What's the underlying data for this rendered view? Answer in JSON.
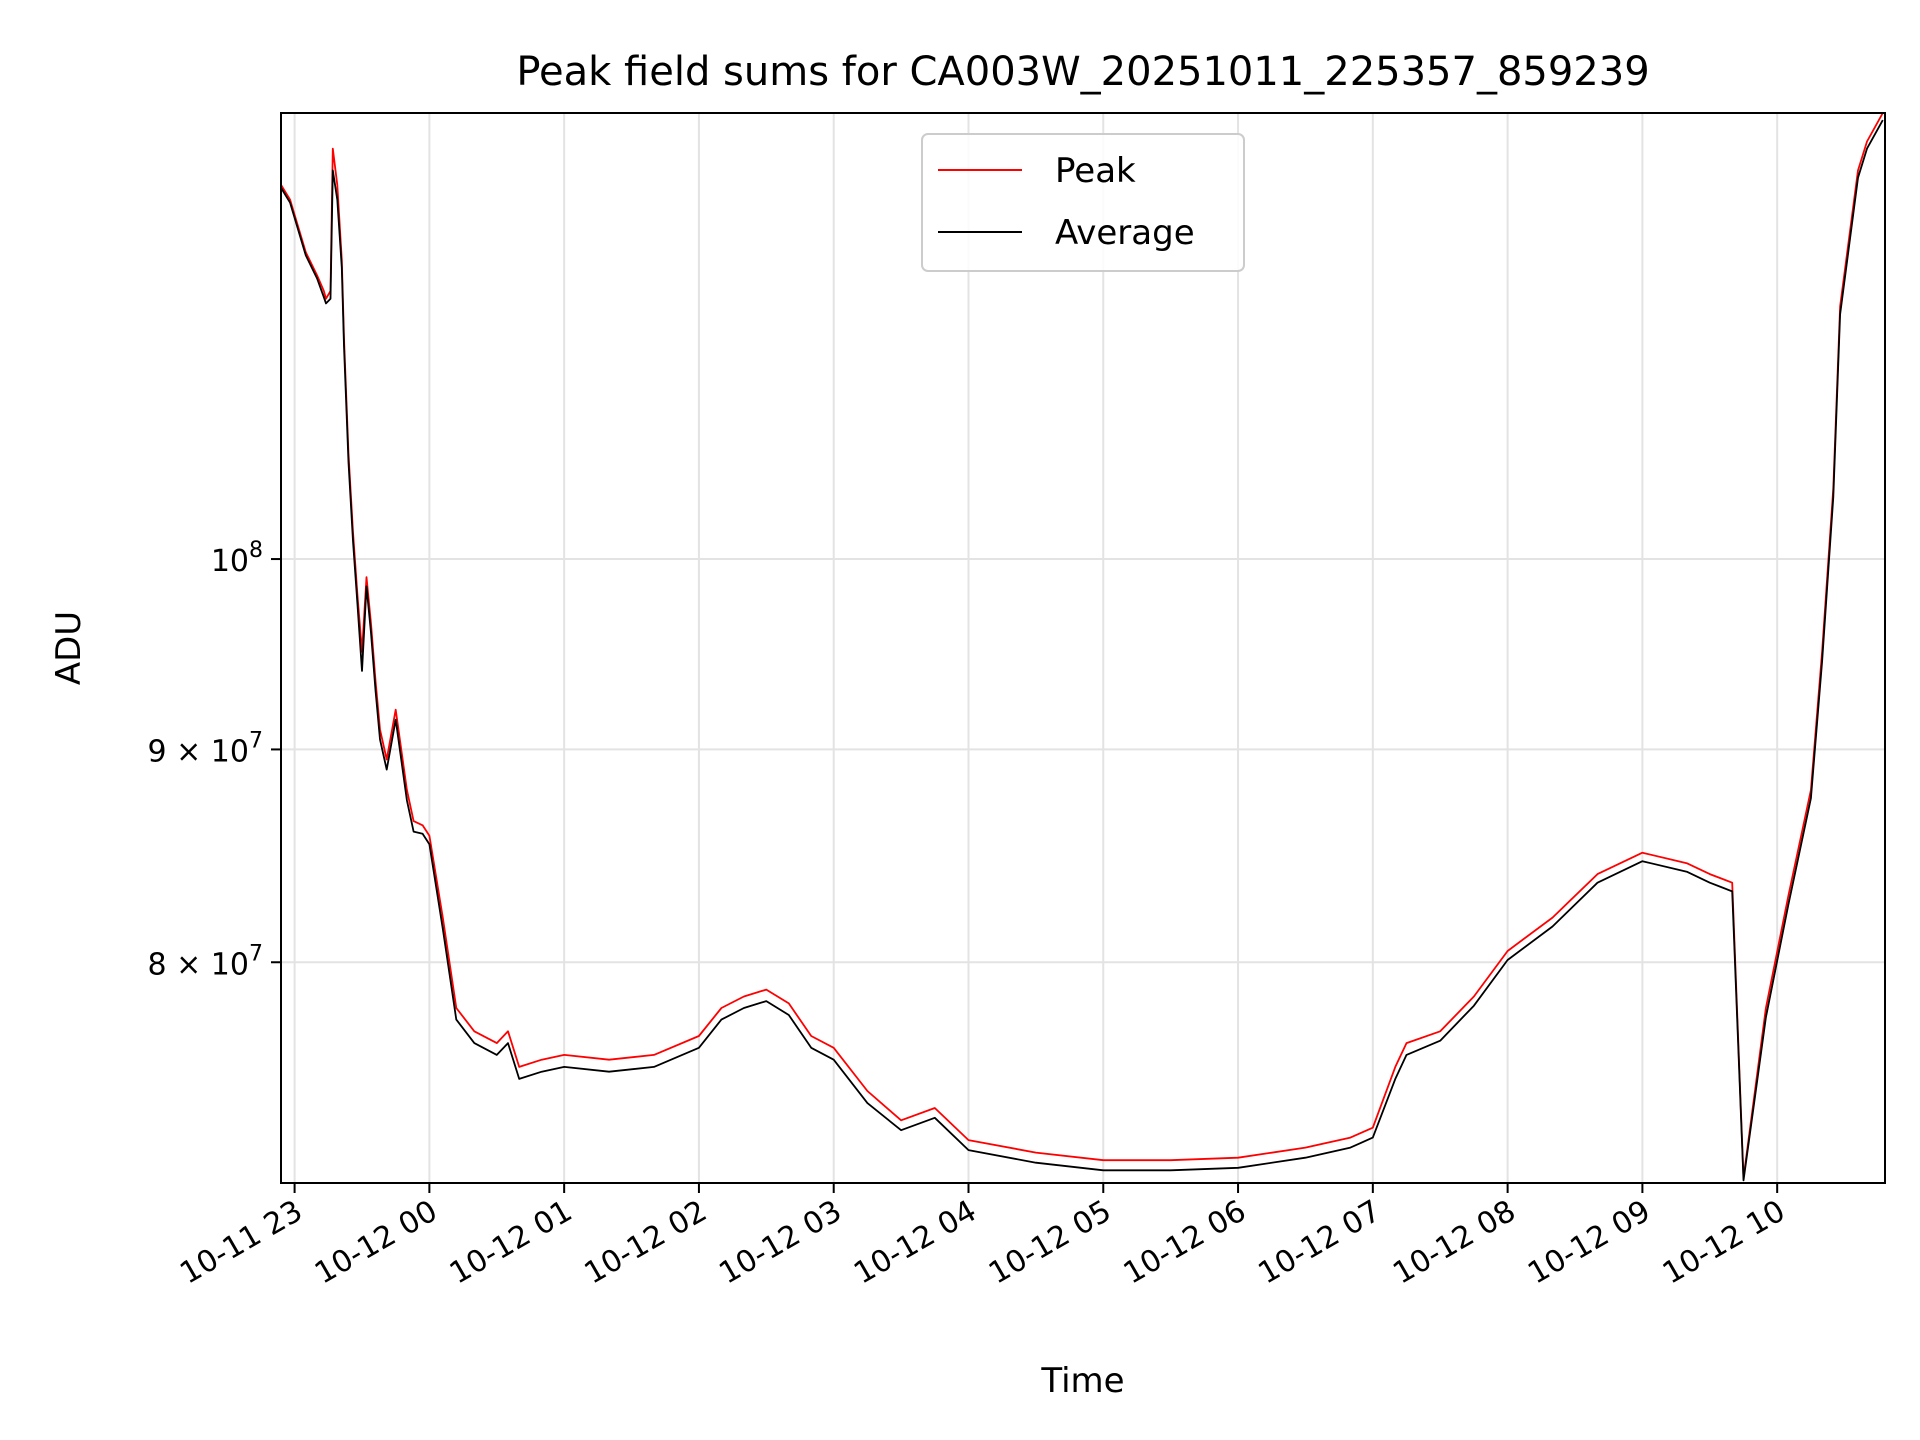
{
  "chart_data": {
    "type": "line",
    "title": "Peak field sums for CA003W_20251011_225357_859239",
    "xlabel": "Time",
    "ylabel": "ADU",
    "y_scale": "log",
    "ylim": [
      70800000,
      128000000
    ],
    "xlim": [
      "2025-10-11 22:53:57",
      "2025-10-12 10:48:00"
    ],
    "grid": true,
    "legend_position": "upper center",
    "x_ticks": [
      {
        "time": "2025-10-11 23:00",
        "label": "10-11 23"
      },
      {
        "time": "2025-10-12 00:00",
        "label": "10-12 00"
      },
      {
        "time": "2025-10-12 01:00",
        "label": "10-12 01"
      },
      {
        "time": "2025-10-12 02:00",
        "label": "10-12 02"
      },
      {
        "time": "2025-10-12 03:00",
        "label": "10-12 03"
      },
      {
        "time": "2025-10-12 04:00",
        "label": "10-12 04"
      },
      {
        "time": "2025-10-12 05:00",
        "label": "10-12 05"
      },
      {
        "time": "2025-10-12 06:00",
        "label": "10-12 06"
      },
      {
        "time": "2025-10-12 07:00",
        "label": "10-12 07"
      },
      {
        "time": "2025-10-12 08:00",
        "label": "10-12 08"
      },
      {
        "time": "2025-10-12 09:00",
        "label": "10-12 09"
      },
      {
        "time": "2025-10-12 10:00",
        "label": "10-12 10"
      }
    ],
    "y_ticks": [
      {
        "value": 100000000,
        "base": "10",
        "exp": "8"
      },
      {
        "value": 90000000,
        "base": "9 × 10",
        "exp": "7"
      },
      {
        "value": 80000000,
        "base": "8 × 10",
        "exp": "7"
      }
    ],
    "series": [
      {
        "name": "Peak",
        "color": "#ff0000",
        "x": [
          "2025-10-11 22:54",
          "2025-10-11 22:58",
          "2025-10-11 23:05",
          "2025-10-11 23:10",
          "2025-10-11 23:13",
          "2025-10-11 23:14",
          "2025-10-11 23:16",
          "2025-10-11 23:17",
          "2025-10-11 23:19",
          "2025-10-11 23:21",
          "2025-10-11 23:22",
          "2025-10-11 23:24",
          "2025-10-11 23:26",
          "2025-10-11 23:28",
          "2025-10-11 23:30",
          "2025-10-11 23:32",
          "2025-10-11 23:34",
          "2025-10-11 23:36",
          "2025-10-11 23:38",
          "2025-10-11 23:41",
          "2025-10-11 23:45",
          "2025-10-11 23:50",
          "2025-10-11 23:53",
          "2025-10-11 23:57",
          "2025-10-12 00:00",
          "2025-10-12 00:06",
          "2025-10-12 00:12",
          "2025-10-12 00:20",
          "2025-10-12 00:30",
          "2025-10-12 00:35",
          "2025-10-12 00:40",
          "2025-10-12 00:50",
          "2025-10-12 01:00",
          "2025-10-12 01:20",
          "2025-10-12 01:40",
          "2025-10-12 02:00",
          "2025-10-12 02:10",
          "2025-10-12 02:20",
          "2025-10-12 02:30",
          "2025-10-12 02:40",
          "2025-10-12 02:50",
          "2025-10-12 03:00",
          "2025-10-12 03:15",
          "2025-10-12 03:30",
          "2025-10-12 03:45",
          "2025-10-12 04:00",
          "2025-10-12 04:30",
          "2025-10-12 05:00",
          "2025-10-12 05:30",
          "2025-10-12 06:00",
          "2025-10-12 06:30",
          "2025-10-12 06:50",
          "2025-10-12 07:00",
          "2025-10-12 07:10",
          "2025-10-12 07:15",
          "2025-10-12 07:30",
          "2025-10-12 07:45",
          "2025-10-12 08:00",
          "2025-10-12 08:20",
          "2025-10-12 08:40",
          "2025-10-12 09:00",
          "2025-10-12 09:20",
          "2025-10-12 09:30",
          "2025-10-12 09:35",
          "2025-10-12 09:40",
          "2025-10-12 09:45",
          "2025-10-12 09:55",
          "2025-10-12 10:05",
          "2025-10-12 10:15",
          "2025-10-12 10:20",
          "2025-10-12 10:25",
          "2025-10-12 10:28",
          "2025-10-12 10:36",
          "2025-10-12 10:40",
          "2025-10-12 10:47"
        ],
        "values": [
          123000000,
          122000000,
          118500000,
          117000000,
          116000000,
          115500000,
          116000000,
          125500000,
          123000000,
          118000000,
          113000000,
          106000000,
          101500000,
          98000000,
          95000000,
          99000000,
          96500000,
          93500000,
          91000000,
          89500000,
          92000000,
          88000000,
          86500000,
          86300000,
          85800000,
          82000000,
          78000000,
          77000000,
          76500000,
          77000000,
          75500000,
          75800000,
          76000000,
          75800000,
          76000000,
          76800000,
          78000000,
          78500000,
          78800000,
          78200000,
          76800000,
          76300000,
          74500000,
          73300000,
          73800000,
          72500000,
          72000000,
          71700000,
          71700000,
          71800000,
          72200000,
          72600000,
          73000000,
          75500000,
          76500000,
          77000000,
          78500000,
          80500000,
          82000000,
          84000000,
          85000000,
          84500000,
          84000000,
          83800000,
          83600000,
          71000000,
          78000000,
          83000000,
          88000000,
          95000000,
          104000000,
          115000000,
          124000000,
          126000000,
          128000000
        ]
      },
      {
        "name": "Average",
        "color": "#000000",
        "x": [
          "2025-10-11 22:54",
          "2025-10-11 22:58",
          "2025-10-11 23:05",
          "2025-10-11 23:10",
          "2025-10-11 23:13",
          "2025-10-11 23:14",
          "2025-10-11 23:16",
          "2025-10-11 23:17",
          "2025-10-11 23:19",
          "2025-10-11 23:21",
          "2025-10-11 23:22",
          "2025-10-11 23:24",
          "2025-10-11 23:26",
          "2025-10-11 23:28",
          "2025-10-11 23:30",
          "2025-10-11 23:32",
          "2025-10-11 23:34",
          "2025-10-11 23:36",
          "2025-10-11 23:38",
          "2025-10-11 23:41",
          "2025-10-11 23:45",
          "2025-10-11 23:50",
          "2025-10-11 23:53",
          "2025-10-11 23:57",
          "2025-10-12 00:00",
          "2025-10-12 00:06",
          "2025-10-12 00:12",
          "2025-10-12 00:20",
          "2025-10-12 00:30",
          "2025-10-12 00:35",
          "2025-10-12 00:40",
          "2025-10-12 00:50",
          "2025-10-12 01:00",
          "2025-10-12 01:20",
          "2025-10-12 01:40",
          "2025-10-12 02:00",
          "2025-10-12 02:10",
          "2025-10-12 02:20",
          "2025-10-12 02:30",
          "2025-10-12 02:40",
          "2025-10-12 02:50",
          "2025-10-12 03:00",
          "2025-10-12 03:15",
          "2025-10-12 03:30",
          "2025-10-12 03:45",
          "2025-10-12 04:00",
          "2025-10-12 04:30",
          "2025-10-12 05:00",
          "2025-10-12 05:30",
          "2025-10-12 06:00",
          "2025-10-12 06:30",
          "2025-10-12 06:50",
          "2025-10-12 07:00",
          "2025-10-12 07:10",
          "2025-10-12 07:15",
          "2025-10-12 07:30",
          "2025-10-12 07:45",
          "2025-10-12 08:00",
          "2025-10-12 08:20",
          "2025-10-12 08:40",
          "2025-10-12 09:00",
          "2025-10-12 09:20",
          "2025-10-12 09:30",
          "2025-10-12 09:35",
          "2025-10-12 09:40",
          "2025-10-12 09:45",
          "2025-10-12 09:55",
          "2025-10-12 10:05",
          "2025-10-12 10:15",
          "2025-10-12 10:20",
          "2025-10-12 10:25",
          "2025-10-12 10:28",
          "2025-10-12 10:36",
          "2025-10-12 10:40",
          "2025-10-12 10:47"
        ],
        "values": [
          122800000,
          121800000,
          118300000,
          116800000,
          115600000,
          115200000,
          115500000,
          124000000,
          122000000,
          117500000,
          112500000,
          105500000,
          101000000,
          97500000,
          94000000,
          98500000,
          96000000,
          93000000,
          90500000,
          89000000,
          91500000,
          87500000,
          86000000,
          85900000,
          85400000,
          81500000,
          77500000,
          76500000,
          76000000,
          76500000,
          75000000,
          75300000,
          75500000,
          75300000,
          75500000,
          76300000,
          77500000,
          78000000,
          78300000,
          77700000,
          76300000,
          75800000,
          74000000,
          72900000,
          73400000,
          72100000,
          71600000,
          71300000,
          71300000,
          71400000,
          71800000,
          72200000,
          72600000,
          75000000,
          76000000,
          76600000,
          78100000,
          80100000,
          81600000,
          83600000,
          84600000,
          84100000,
          83600000,
          83400000,
          83200000,
          70900000,
          77600000,
          82600000,
          87600000,
          94500000,
          103500000,
          114500000,
          123500000,
          125500000,
          127500000
        ]
      }
    ]
  }
}
